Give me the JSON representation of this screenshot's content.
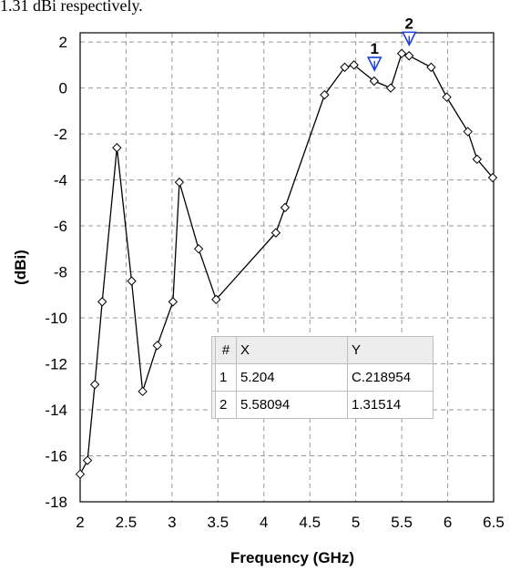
{
  "caption": "1.31 dBi respectively.",
  "chart_data": {
    "type": "line",
    "xlabel": "Frequency (GHz)",
    "ylabel": "(dBi)",
    "xlim": [
      2,
      6.5
    ],
    "ylim": [
      -18,
      2.4
    ],
    "xticks": [
      "2",
      "2.5",
      "3",
      "3.5",
      "4",
      "4.5",
      "5",
      "5.5",
      "6",
      "6.5"
    ],
    "yticks": [
      "2",
      "0",
      "-2",
      "-4",
      "-6",
      "-8",
      "-10",
      "-12",
      "-14",
      "-16",
      "-18"
    ],
    "grid": true,
    "series": [
      {
        "x": [
          2.0,
          2.08,
          2.16,
          2.24,
          2.4,
          2.56,
          2.68,
          2.84,
          3.01,
          3.08,
          3.29,
          3.48,
          4.13,
          4.23,
          4.66,
          4.88,
          4.98,
          5.2,
          5.38,
          5.5,
          5.58,
          5.82,
          5.99,
          6.22,
          6.32,
          6.49
        ],
        "y": [
          -16.8,
          -16.2,
          -12.9,
          -9.3,
          -2.6,
          -8.4,
          -13.2,
          -11.2,
          -9.3,
          -4.1,
          -7.0,
          -9.2,
          -6.3,
          -5.2,
          -0.3,
          0.9,
          1.0,
          0.3,
          0.0,
          1.5,
          1.4,
          0.9,
          -0.4,
          -1.9,
          -3.1,
          -3.9
        ]
      }
    ],
    "markers": [
      {
        "label": "1",
        "x": 5.204,
        "y": 0.218954
      },
      {
        "label": "2",
        "x": 5.58094,
        "y": 1.31514
      }
    ]
  },
  "marker_table": {
    "headers": [
      "#",
      "X",
      "Y"
    ],
    "rows": [
      [
        "1",
        "5.204",
        "C.218954"
      ],
      [
        "2",
        "5.58094",
        "1.31514"
      ]
    ]
  }
}
